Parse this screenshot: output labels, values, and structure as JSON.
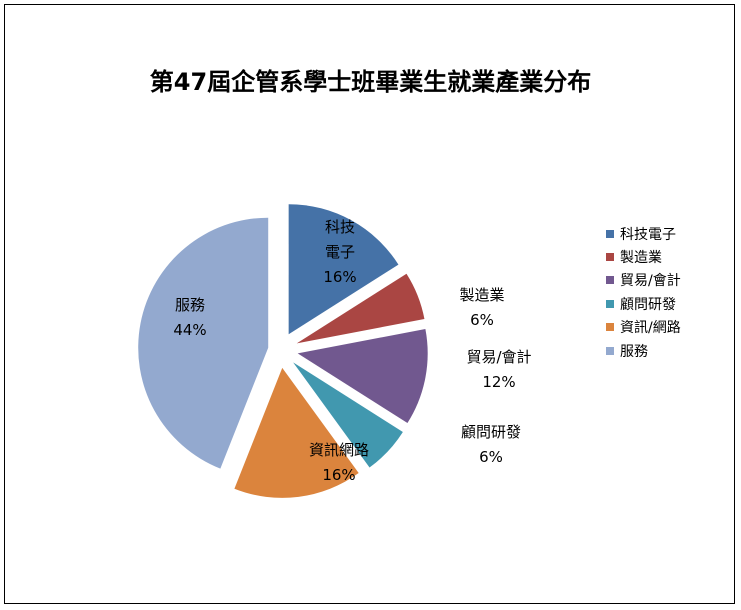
{
  "chart_data": {
    "type": "pie",
    "title": "第47屆企管系學士班畢業生就業產業分布",
    "series": [
      {
        "name": "科技電子",
        "value": 16,
        "label_lines": [
          "科技",
          "電子",
          "16%"
        ],
        "color": "#4572A7"
      },
      {
        "name": "製造業",
        "value": 6,
        "label_lines": [
          "製造業",
          "6%"
        ],
        "color": "#AA4643"
      },
      {
        "name": "貿易/會計",
        "value": 12,
        "label_lines": [
          "貿易/會計",
          "12%"
        ],
        "color": "#71588F"
      },
      {
        "name": "顧問研發",
        "value": 6,
        "label_lines": [
          "顧問研發",
          "6%"
        ],
        "color": "#4198AF"
      },
      {
        "name": "資訊/網路",
        "value": 16,
        "label_lines": [
          "資訊網路",
          "16%"
        ],
        "color": "#DB843D"
      },
      {
        "name": "服務",
        "value": 44,
        "label_lines": [
          "服務",
          "44%"
        ],
        "color": "#93A9CF"
      }
    ],
    "legend": {
      "position": "right",
      "items": [
        "科技電子",
        "製造業",
        "貿易/會計",
        "顧問研發",
        "資訊/網路",
        "服務"
      ]
    }
  }
}
